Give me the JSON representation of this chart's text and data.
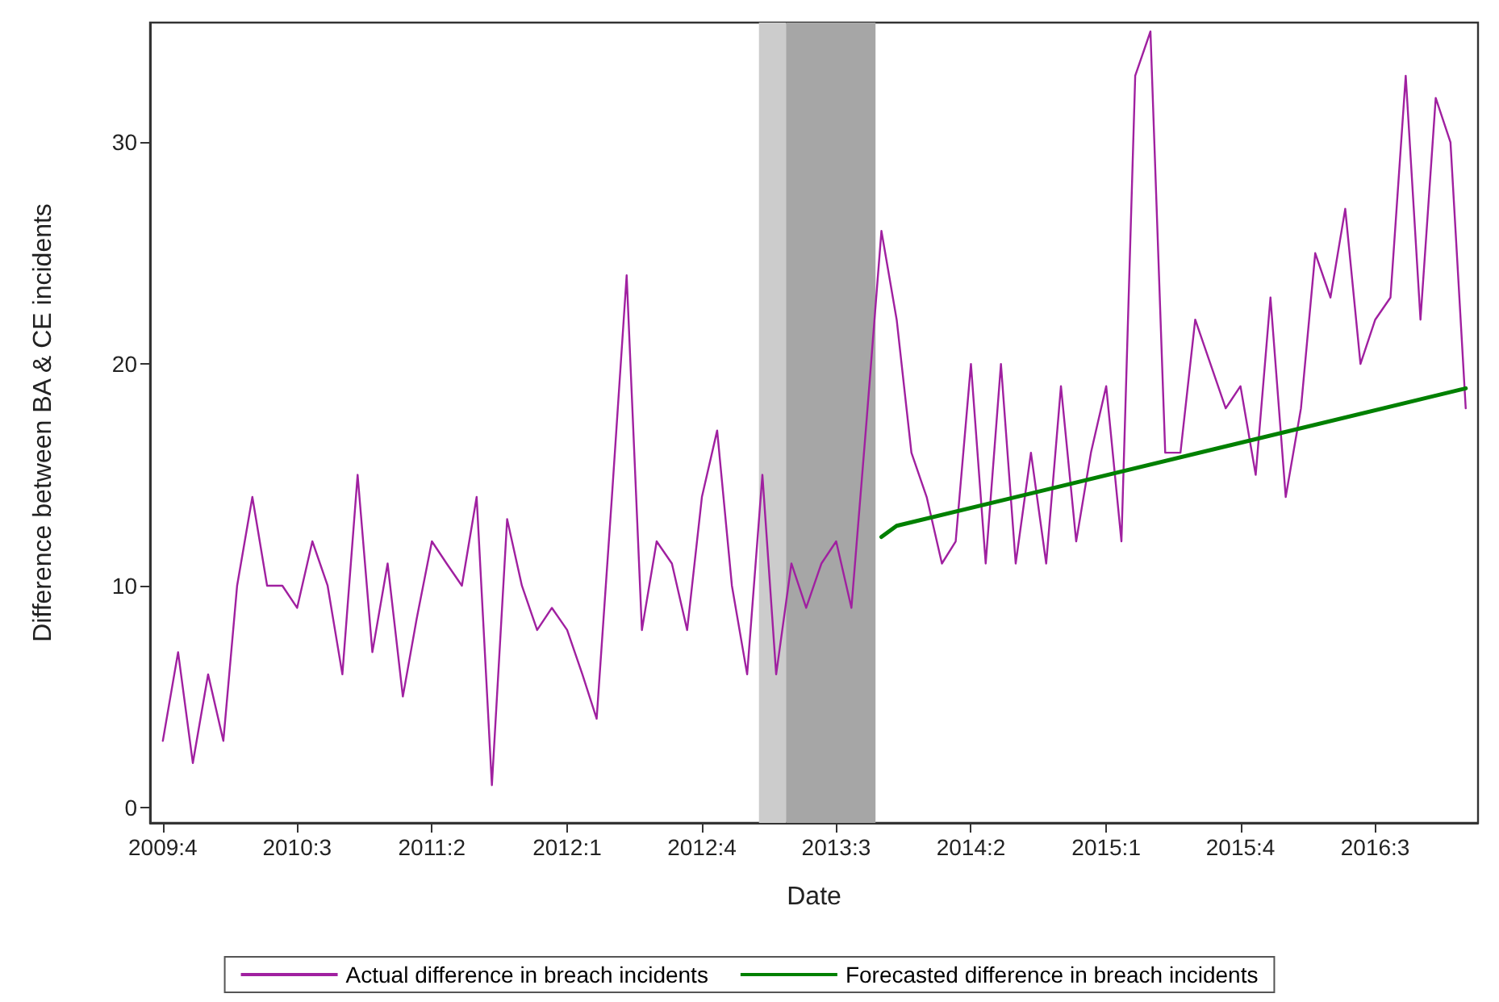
{
  "chart_data": {
    "type": "line",
    "xlabel": "Date",
    "ylabel": "Difference between BA & CE incidents",
    "xlim": [
      "2009-09-05",
      "2017-01-26"
    ],
    "ylim": [
      -0.7,
      35.4
    ],
    "yticks": [
      0,
      10,
      20,
      30
    ],
    "xticks": [
      {
        "value": "2009-10",
        "label": "2009:4"
      },
      {
        "value": "2010-07",
        "label": "2010:3"
      },
      {
        "value": "2011-04",
        "label": "2011:2"
      },
      {
        "value": "2012-01",
        "label": "2012:1"
      },
      {
        "value": "2012-10",
        "label": "2012:4"
      },
      {
        "value": "2013-07",
        "label": "2013:3"
      },
      {
        "value": "2014-04",
        "label": "2014:2"
      },
      {
        "value": "2015-01",
        "label": "2015:1"
      },
      {
        "value": "2015-10",
        "label": "2015:4"
      },
      {
        "value": "2016-07",
        "label": "2016:3"
      }
    ],
    "grid": false,
    "legend": "bottom",
    "marker": "none",
    "line_style": "solid",
    "bands": [
      {
        "axis": "x",
        "from": "2013-01-25",
        "to": "2013-03-21",
        "color": "#cccccc"
      },
      {
        "axis": "x",
        "from": "2013-03-21",
        "to": "2013-09-19",
        "color": "#a6a6a6"
      }
    ],
    "series": [
      {
        "name": "Actual difference in breach incidents",
        "color": "#a020a0",
        "x": [
          "2009-10",
          "2009-11",
          "2009-12",
          "2010-01",
          "2010-02",
          "2010-03",
          "2010-04",
          "2010-05",
          "2010-06",
          "2010-07",
          "2010-08",
          "2010-09",
          "2010-10",
          "2010-11",
          "2010-12",
          "2011-01",
          "2011-02",
          "2011-03",
          "2011-04",
          "2011-05",
          "2011-06",
          "2011-07",
          "2011-08",
          "2011-09",
          "2011-10",
          "2011-11",
          "2011-12",
          "2012-01",
          "2012-02",
          "2012-03",
          "2012-04",
          "2012-05",
          "2012-06",
          "2012-07",
          "2012-08",
          "2012-09",
          "2012-10",
          "2012-11",
          "2012-12",
          "2013-01",
          "2013-02",
          "2013-03",
          "2013-04",
          "2013-05",
          "2013-06",
          "2013-07",
          "2013-08",
          "2013-09",
          "2013-10",
          "2013-11",
          "2013-12",
          "2014-01",
          "2014-02",
          "2014-03",
          "2014-04",
          "2014-05",
          "2014-06",
          "2014-07",
          "2014-08",
          "2014-09",
          "2014-10",
          "2014-11",
          "2014-12",
          "2015-01",
          "2015-02",
          "2015-03",
          "2015-04",
          "2015-05",
          "2015-06",
          "2015-07",
          "2015-08",
          "2015-09",
          "2015-10",
          "2015-11",
          "2015-12",
          "2016-01",
          "2016-02",
          "2016-03",
          "2016-04",
          "2016-05",
          "2016-06",
          "2016-07",
          "2016-08",
          "2016-09",
          "2016-10",
          "2016-11",
          "2016-12",
          "2017-01"
        ],
        "values": [
          3,
          7,
          2,
          6,
          3,
          10,
          14,
          10,
          10,
          9,
          12,
          10,
          6,
          15,
          7,
          11,
          5,
          8.5,
          12,
          11,
          10,
          14,
          1,
          13,
          10,
          8,
          9,
          8,
          6,
          4,
          14,
          24,
          8,
          12,
          11,
          8,
          14,
          17,
          10,
          6,
          15,
          6,
          11,
          9,
          11,
          12,
          9,
          17.5,
          26,
          22,
          16,
          14,
          11,
          12,
          20,
          11,
          20,
          11,
          16,
          11,
          19,
          12,
          16,
          19,
          12,
          33,
          35,
          16,
          16,
          22,
          20,
          18,
          19,
          15,
          23,
          14,
          18,
          25,
          23,
          27,
          20,
          22,
          23,
          33,
          22,
          32,
          30,
          18
        ]
      },
      {
        "name": "Forecasted difference in breach incidents",
        "color": "#008000",
        "x": [
          "2013-10",
          "2013-11",
          "2017-01"
        ],
        "values": [
          12.2,
          12.7,
          18.9
        ]
      }
    ]
  }
}
